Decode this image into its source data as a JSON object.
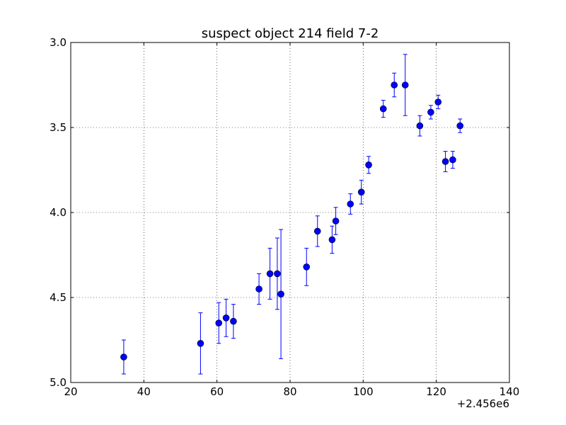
{
  "chart_data": {
    "type": "scatter",
    "title": "suspect object 214 field 7-2",
    "xlabel": "",
    "ylabel": "",
    "x_offset_label": "+2.456e6",
    "xlim": [
      20,
      140
    ],
    "ylim": [
      5.0,
      3.0
    ],
    "y_inverted": true,
    "grid": true,
    "x_ticks": [
      20,
      40,
      60,
      80,
      100,
      120,
      140
    ],
    "x_tick_labels": [
      "20",
      "40",
      "60",
      "80",
      "100",
      "120",
      "140"
    ],
    "y_ticks": [
      3.0,
      3.5,
      4.0,
      4.5,
      5.0
    ],
    "y_tick_labels": [
      "3.0",
      "3.5",
      "4.0",
      "4.5",
      "5.0"
    ],
    "marker_color": "#0000ff",
    "series": [
      {
        "points": [
          {
            "x": 34.5,
            "y": 4.85,
            "err": 0.1
          },
          {
            "x": 55.5,
            "y": 4.77,
            "err": 0.18
          },
          {
            "x": 60.5,
            "y": 4.65,
            "err": 0.12
          },
          {
            "x": 62.5,
            "y": 4.62,
            "err": 0.11
          },
          {
            "x": 64.5,
            "y": 4.64,
            "err": 0.1
          },
          {
            "x": 71.5,
            "y": 4.45,
            "err": 0.09
          },
          {
            "x": 74.5,
            "y": 4.36,
            "err": 0.15
          },
          {
            "x": 76.5,
            "y": 4.36,
            "err": 0.21
          },
          {
            "x": 77.5,
            "y": 4.48,
            "err": 0.38
          },
          {
            "x": 84.5,
            "y": 4.32,
            "err": 0.11
          },
          {
            "x": 87.5,
            "y": 4.11,
            "err": 0.09
          },
          {
            "x": 91.5,
            "y": 4.16,
            "err": 0.08
          },
          {
            "x": 92.5,
            "y": 4.05,
            "err": 0.08
          },
          {
            "x": 96.5,
            "y": 3.95,
            "err": 0.06
          },
          {
            "x": 99.5,
            "y": 3.88,
            "err": 0.07
          },
          {
            "x": 101.5,
            "y": 3.72,
            "err": 0.05
          },
          {
            "x": 105.5,
            "y": 3.39,
            "err": 0.05
          },
          {
            "x": 108.5,
            "y": 3.25,
            "err": 0.07
          },
          {
            "x": 111.5,
            "y": 3.25,
            "err": 0.18
          },
          {
            "x": 115.5,
            "y": 3.49,
            "err": 0.06
          },
          {
            "x": 118.5,
            "y": 3.41,
            "err": 0.04
          },
          {
            "x": 120.5,
            "y": 3.35,
            "err": 0.04
          },
          {
            "x": 122.5,
            "y": 3.7,
            "err": 0.06
          },
          {
            "x": 124.5,
            "y": 3.69,
            "err": 0.05
          },
          {
            "x": 126.5,
            "y": 3.49,
            "err": 0.04
          }
        ]
      }
    ]
  }
}
